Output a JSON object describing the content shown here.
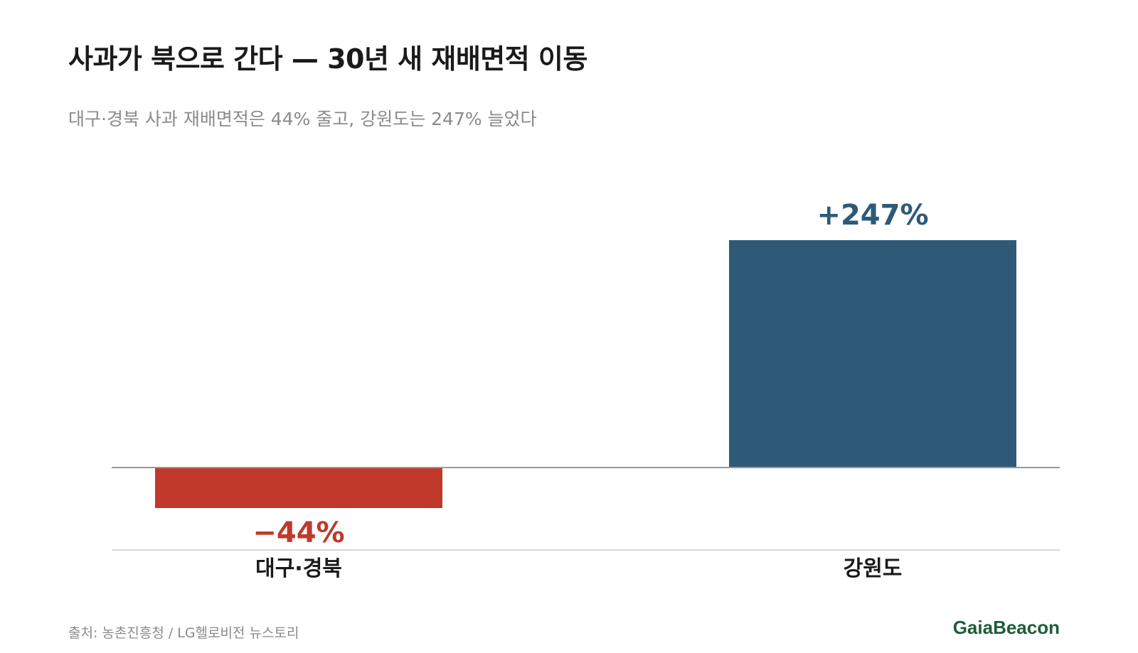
{
  "header": {
    "title": "사과가 북으로 간다 — 30년 새 재배면적 이동",
    "subtitle": "대구·경북 사과 재배면적은 44% 줄고, 강원도는 247% 늘었다"
  },
  "chart_data": {
    "type": "bar",
    "categories": [
      "대구·경북",
      "강원도"
    ],
    "values": [
      -44,
      247
    ],
    "value_labels": [
      "−44%",
      "+247%"
    ],
    "colors": [
      "#c0392b",
      "#2e5a78"
    ],
    "title": "사과가 북으로 간다 — 30년 새 재배면적 이동",
    "subtitle": "대구·경북 사과 재배면적은 44% 줄고, 강원도는 247% 늘었다",
    "xlabel": "",
    "ylabel": "",
    "ylim": [
      -44,
      247
    ],
    "grid": false,
    "legend": "none"
  },
  "footer": {
    "source": "출처: 농촌진흥청 / LG헬로비전 뉴스토리",
    "brand": "GaiaBeacon"
  },
  "colors": {
    "negative": "#c0392b",
    "positive": "#2e5a78",
    "brand": "#1f5c3a",
    "axis": "#999999"
  }
}
